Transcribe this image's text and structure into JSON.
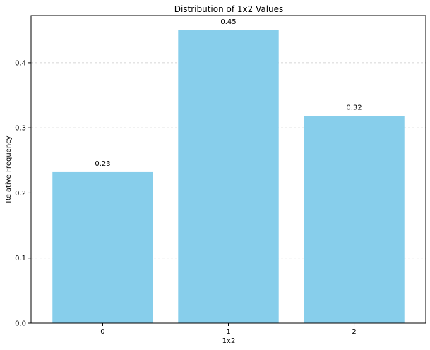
{
  "chart_data": {
    "type": "bar",
    "title": "Distribution of 1x2 Values",
    "xlabel": "1x2",
    "ylabel": "Relative Frequency",
    "categories": [
      "0",
      "1",
      "2"
    ],
    "values": [
      0.232,
      0.45,
      0.318
    ],
    "data_labels": [
      "0.23",
      "0.45",
      "0.32"
    ],
    "ylim": [
      0,
      0.4725
    ],
    "yticks": [
      0.0,
      0.1,
      0.2,
      0.3,
      0.4
    ],
    "ytick_labels": [
      "0.0",
      "0.1",
      "0.2",
      "0.3",
      "0.4"
    ],
    "grid": "y-dashed",
    "bar_color": "#87ceeb",
    "legend": "none"
  }
}
